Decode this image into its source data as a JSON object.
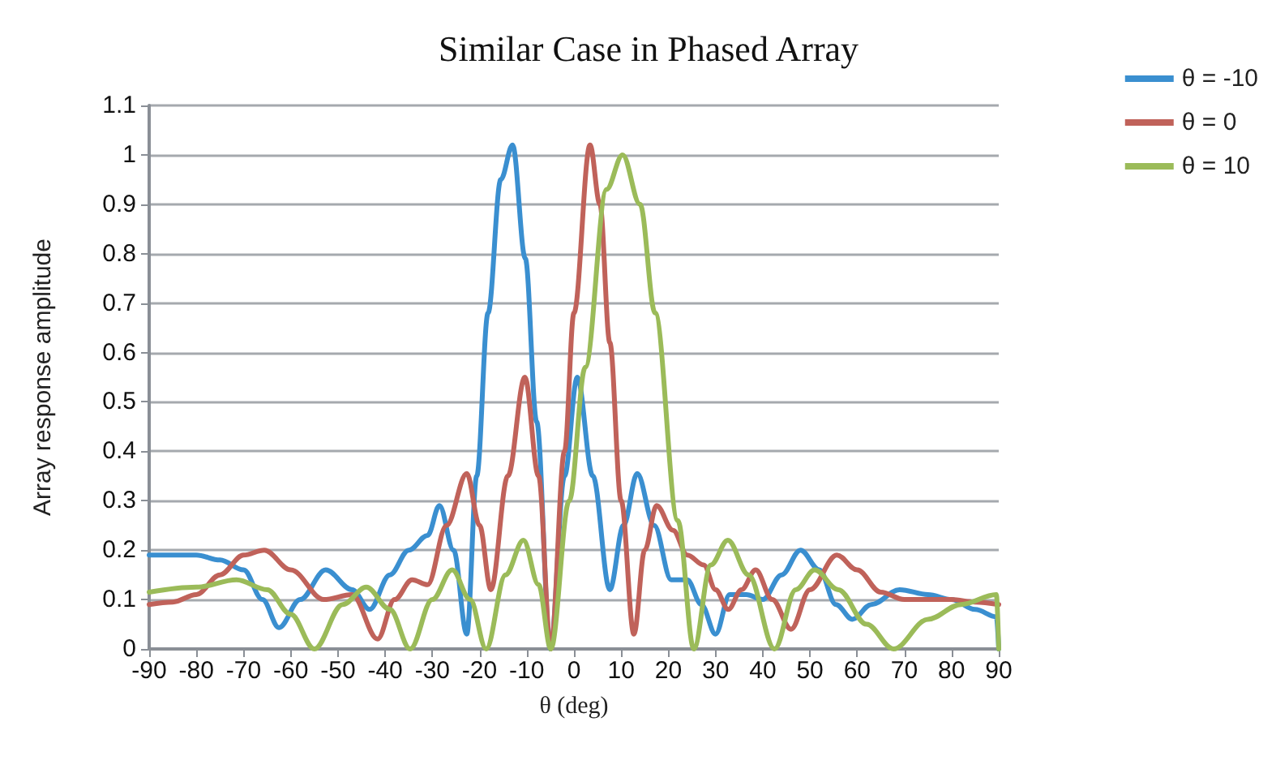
{
  "chart_data": {
    "type": "line",
    "title": "Similar Case in Phased Array",
    "xlabel": "θ (deg)",
    "ylabel": "Array response amplitude",
    "xlim": [
      -90,
      90
    ],
    "xticks": [
      -90,
      -80,
      -70,
      -60,
      -50,
      -40,
      -30,
      -20,
      -10,
      0,
      10,
      20,
      30,
      40,
      50,
      60,
      70,
      80,
      90
    ],
    "ylim": [
      0,
      1.1
    ],
    "yticks": [
      0,
      0.1,
      0.2,
      0.3,
      0.4,
      0.5,
      0.6,
      0.7,
      0.8,
      0.9,
      1,
      1.1
    ],
    "grid": "y",
    "legend": "top right",
    "marker": "none",
    "line_style": "solid",
    "series": [
      {
        "name": "θ = -10",
        "color": "#3a8fd0",
        "x": [
          -90,
          -80,
          -75,
          -70,
          -66,
          -62.5,
          -58,
          -52.6,
          -47,
          -43.3,
          -39,
          -35,
          -31,
          -28.5,
          -25.5,
          -22.7,
          -20.6,
          -18.2,
          -15.5,
          -13,
          -10.3,
          -7.9,
          -5,
          -2,
          0.7,
          4,
          7.6,
          10.5,
          13.4,
          17,
          20.6,
          24,
          27,
          30,
          33,
          36.5,
          40,
          44,
          48,
          52,
          55.5,
          59,
          63,
          69,
          75,
          80,
          85,
          89.5,
          90
        ],
        "values": [
          0.19,
          0.19,
          0.18,
          0.16,
          0.1,
          0.043,
          0.1,
          0.16,
          0.12,
          0.08,
          0.15,
          0.2,
          0.23,
          0.29,
          0.2,
          0.03,
          0.35,
          0.68,
          0.95,
          1.02,
          0.79,
          0.46,
          0,
          0.35,
          0.55,
          0.35,
          0.12,
          0.25,
          0.355,
          0.25,
          0.14,
          0.14,
          0.09,
          0.03,
          0.11,
          0.11,
          0.1,
          0.15,
          0.2,
          0.16,
          0.09,
          0.06,
          0.09,
          0.12,
          0.11,
          0.1,
          0.08,
          0.065,
          0
        ]
      },
      {
        "name": "θ = 0",
        "color": "#c0625a",
        "x": [
          -90,
          -85,
          -80,
          -75,
          -70,
          -65.6,
          -60,
          -53,
          -47,
          -41.6,
          -38,
          -34.3,
          -31,
          -27,
          -22.7,
          -20,
          -17.6,
          -14,
          -10.4,
          -7.5,
          -4.9,
          -2,
          0,
          3.4,
          5.5,
          7.6,
          10,
          12.7,
          15,
          17.5,
          21,
          24,
          27.5,
          30,
          32.7,
          35.5,
          38.5,
          42,
          46,
          50,
          55.7,
          60,
          65,
          70,
          75,
          80,
          85,
          90
        ],
        "values": [
          0.09,
          0.095,
          0.11,
          0.15,
          0.19,
          0.2,
          0.16,
          0.1,
          0.11,
          0.02,
          0.1,
          0.14,
          0.13,
          0.25,
          0.355,
          0.25,
          0.12,
          0.35,
          0.55,
          0.35,
          0,
          0.4,
          0.68,
          1.02,
          0.9,
          0.62,
          0.3,
          0.03,
          0.2,
          0.29,
          0.24,
          0.19,
          0.17,
          0.12,
          0.08,
          0.12,
          0.16,
          0.1,
          0.04,
          0.12,
          0.19,
          0.16,
          0.115,
          0.1,
          0.1,
          0.1,
          0.095,
          0.09
        ]
      },
      {
        "name": "θ = 10",
        "color": "#9bbb59",
        "x": [
          -90,
          -80,
          -71.5,
          -65,
          -60,
          -55,
          -49,
          -44,
          -39,
          -34.7,
          -30,
          -25.8,
          -22,
          -18.6,
          -14.5,
          -10.7,
          -7.5,
          -4.9,
          -1,
          2.4,
          6.9,
          10.3,
          14,
          17.2,
          22,
          25.4,
          29,
          32.6,
          37,
          42.5,
          47,
          51,
          56,
          62,
          67.7,
          75,
          82,
          89.5,
          90
        ],
        "values": [
          0.115,
          0.125,
          0.14,
          0.12,
          0.07,
          0,
          0.09,
          0.125,
          0.08,
          0,
          0.1,
          0.16,
          0.1,
          0,
          0.15,
          0.22,
          0.13,
          0,
          0.3,
          0.57,
          0.93,
          1.0,
          0.9,
          0.68,
          0.26,
          0,
          0.17,
          0.22,
          0.15,
          0,
          0.12,
          0.16,
          0.12,
          0.05,
          0,
          0.06,
          0.09,
          0.11,
          0
        ]
      }
    ]
  }
}
